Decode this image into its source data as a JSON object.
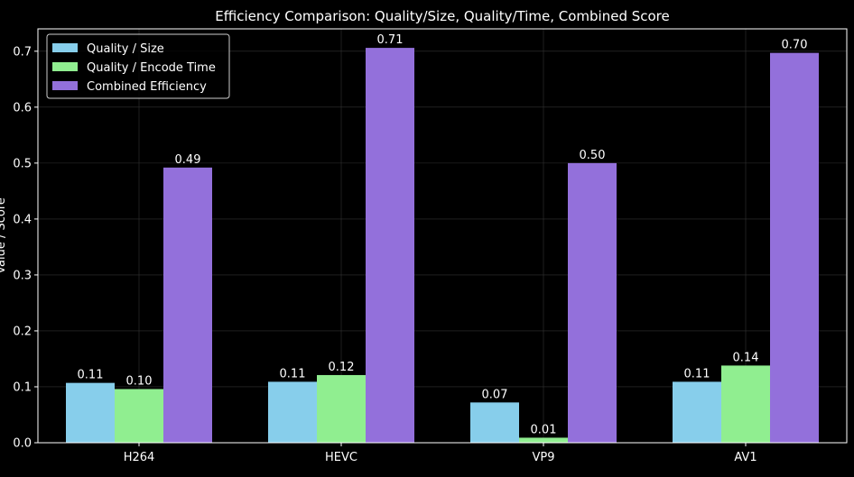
{
  "chart_data": {
    "type": "bar",
    "title": "Efficiency Comparison: Quality/Size, Quality/Time, Combined Score",
    "xlabel": "",
    "ylabel": "Value / Score",
    "categories": [
      "H264",
      "HEVC",
      "VP9",
      "AV1"
    ],
    "series": [
      {
        "name": "Quality / Size",
        "values": [
          0.107,
          0.109,
          0.072,
          0.109
        ],
        "labels": [
          "0.11",
          "0.11",
          "0.07",
          "0.11"
        ],
        "color": "#87ceeb"
      },
      {
        "name": "Quality / Encode Time",
        "values": [
          0.096,
          0.121,
          0.009,
          0.138
        ],
        "labels": [
          "0.10",
          "0.12",
          "0.01",
          "0.14"
        ],
        "color": "#90ee90"
      },
      {
        "name": "Combined Efficiency",
        "values": [
          0.492,
          0.706,
          0.5,
          0.697
        ],
        "labels": [
          "0.49",
          "0.71",
          "0.50",
          "0.70"
        ],
        "color": "#9370db"
      }
    ],
    "ylim": [
      0,
      0.74
    ],
    "yticks": [
      "0.0",
      "0.1",
      "0.2",
      "0.3",
      "0.4",
      "0.5",
      "0.6",
      "0.7"
    ],
    "grid": true,
    "legend_position": "top-left",
    "colors": {
      "background": "#000000",
      "axis": "#ffffff",
      "grid": "#333333",
      "text": "#ffffff"
    }
  }
}
